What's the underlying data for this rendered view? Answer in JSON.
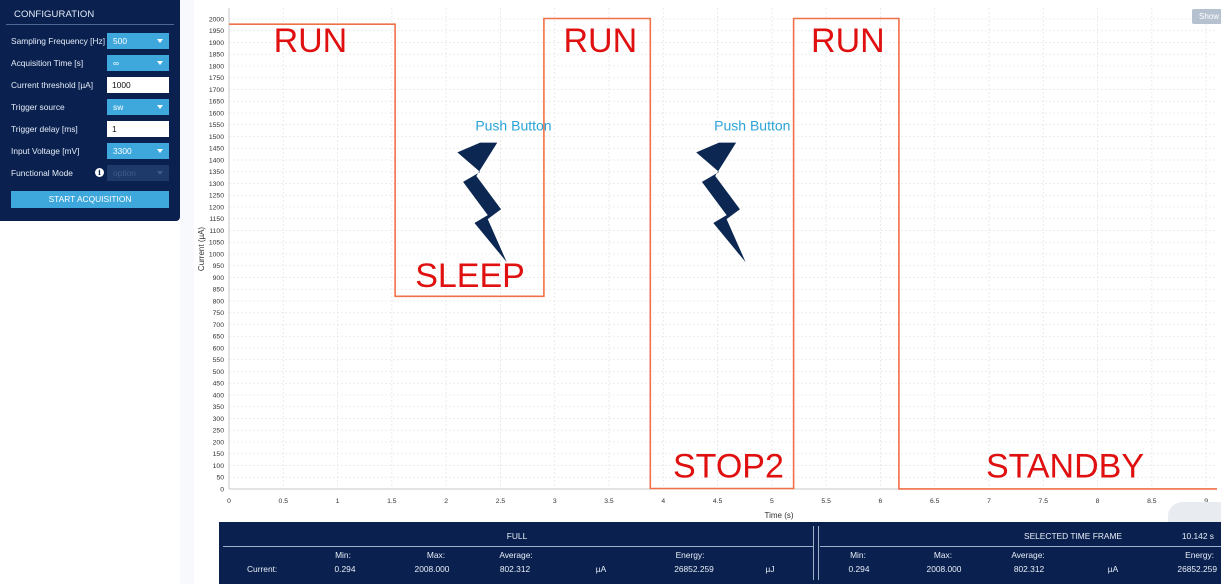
{
  "config": {
    "title": "CONFIGURATION",
    "rows": [
      {
        "label": "Sampling Frequency [Hz]",
        "kind": "select",
        "value": "500"
      },
      {
        "label": "Acquisition Time [s]",
        "kind": "select",
        "value": "∞"
      },
      {
        "label": "Current threshold [µA]",
        "kind": "input",
        "value": "1000"
      },
      {
        "label": "Trigger source",
        "kind": "select",
        "value": "sw"
      },
      {
        "label": "Trigger delay [ms]",
        "kind": "input",
        "value": "1"
      },
      {
        "label": "Input Voltage [mV]",
        "kind": "select",
        "value": "3300"
      },
      {
        "label": "Functional Mode",
        "kind": "select-disabled",
        "value": "option",
        "icon": "info-icon"
      }
    ],
    "start_label": "START ACQUISITION"
  },
  "show_label": "Show",
  "chart_data": {
    "type": "line",
    "xlabel": "Time (s)",
    "ylabel": "Current (µA)",
    "xlim": [
      0,
      9.1
    ],
    "ylim": [
      0,
      2000
    ],
    "x_ticks": [
      0,
      0.5,
      1,
      1.5,
      2,
      2.5,
      3,
      3.5,
      4,
      4.5,
      5,
      5.5,
      6,
      6.5,
      7,
      7.5,
      8,
      8.5,
      9
    ],
    "y_ticks": [
      0,
      50,
      100,
      150,
      200,
      250,
      300,
      350,
      400,
      450,
      500,
      550,
      600,
      650,
      700,
      750,
      800,
      850,
      900,
      950,
      1000,
      1050,
      1100,
      1150,
      1200,
      1250,
      1300,
      1350,
      1400,
      1450,
      1500,
      1550,
      1600,
      1650,
      1700,
      1750,
      1800,
      1850,
      1900,
      1950,
      2000
    ],
    "grid": true,
    "line_color": "#f07048",
    "series": [
      {
        "x": [
          0,
          1.53,
          1.53,
          2.9,
          2.9,
          3.88,
          3.88,
          5.2,
          5.2,
          6.17,
          6.17,
          9.1
        ],
        "y": [
          1978,
          1978,
          820,
          820,
          2002,
          2002,
          2,
          2,
          2002,
          2002,
          0.3,
          0.3
        ]
      }
    ],
    "annotations": [
      {
        "text": "RUN",
        "x": 0.75,
        "y": 1860,
        "kind": "state"
      },
      {
        "text": "SLEEP",
        "x": 2.22,
        "y": 860,
        "kind": "state"
      },
      {
        "text": "RUN",
        "x": 3.42,
        "y": 1860,
        "kind": "state"
      },
      {
        "text": "STOP2",
        "x": 4.6,
        "y": 50,
        "kind": "state"
      },
      {
        "text": "RUN",
        "x": 5.7,
        "y": 1860,
        "kind": "state"
      },
      {
        "text": "STANDBY",
        "x": 7.7,
        "y": 50,
        "kind": "state"
      },
      {
        "text": "Push Button",
        "x": 2.62,
        "y": 1525,
        "kind": "push"
      },
      {
        "text": "Push Button",
        "x": 4.82,
        "y": 1525,
        "kind": "push"
      }
    ],
    "bolt_icons": [
      "lightning-bolt-icon",
      "lightning-bolt-icon"
    ],
    "bolt_color": "#0c2852"
  },
  "stats": {
    "full_title": "FULL",
    "selected_title": "SELECTED TIME FRAME",
    "selected_duration": "10.142 s",
    "row_label": "Current:",
    "min_label": "Min:",
    "max_label": "Max:",
    "avg_label": "Average:",
    "energy_label": "Energy:",
    "full": {
      "min": "0.294",
      "max": "2008.000",
      "avg": "802.312",
      "unit": "µA",
      "energy": "26852.259",
      "energy_unit": "µJ"
    },
    "selected": {
      "min": "0.294",
      "max": "2008.000",
      "avg": "802.312",
      "unit": "µA",
      "energy": "26852.259"
    }
  }
}
